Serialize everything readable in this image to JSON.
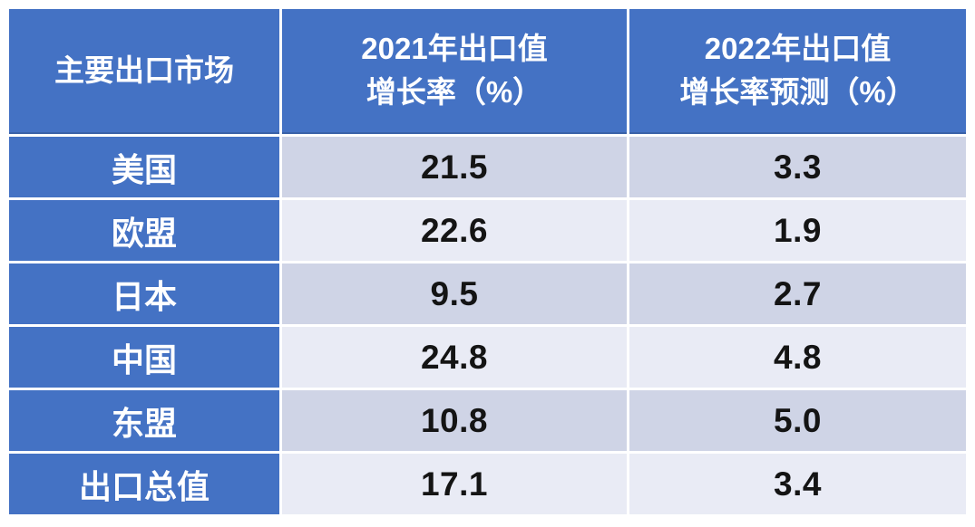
{
  "colors": {
    "accent": "#4472C4",
    "band_dark": "#CFD4E6",
    "band_light": "#E9EBF5",
    "header_text": "#FFFFFF",
    "value_text": "#141414",
    "separator": "#FFFFFF"
  },
  "table": {
    "header": {
      "market": "主要出口市场",
      "col2021_line1": "2021年出口值",
      "col2021_line2": "增长率（%）",
      "col2022_line1": "2022年出口值",
      "col2022_line2": "增长率预测（%）"
    },
    "rows": [
      {
        "market": "美国",
        "v2021": "21.5",
        "v2022": "3.3"
      },
      {
        "market": "欧盟",
        "v2021": "22.6",
        "v2022": "1.9"
      },
      {
        "market": "日本",
        "v2021": "9.5",
        "v2022": "2.7"
      },
      {
        "market": "中国",
        "v2021": "24.8",
        "v2022": "4.8"
      },
      {
        "market": "东盟",
        "v2021": "10.8",
        "v2022": "5.0"
      },
      {
        "market": "出口总值",
        "v2021": "17.1",
        "v2022": "3.4"
      }
    ]
  },
  "chart_data": {
    "type": "table",
    "title": "主要出口市场出口值增长率",
    "columns": [
      "主要出口市场",
      "2021年出口值增长率（%）",
      "2022年出口值增长率预测（%）"
    ],
    "rows": [
      [
        "美国",
        21.5,
        3.3
      ],
      [
        "欧盟",
        22.6,
        1.9
      ],
      [
        "日本",
        9.5,
        2.7
      ],
      [
        "中国",
        24.8,
        4.8
      ],
      [
        "东盟",
        10.8,
        5.0
      ],
      [
        "出口总值",
        17.1,
        3.4
      ]
    ],
    "notes": "blue header row and first column, alternating lavender data bands starting dark"
  }
}
